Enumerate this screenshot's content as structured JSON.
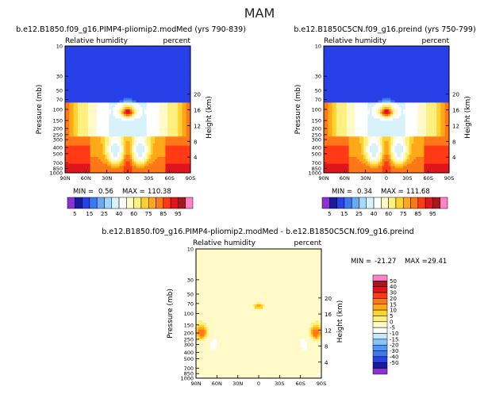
{
  "page_title": "MAM",
  "palette": {
    "full": [
      "#8c2fd6",
      "#1a1aa0",
      "#2840e8",
      "#3c78f0",
      "#6aaaf0",
      "#a4d8f8",
      "#d8f2fc",
      "#ffffff",
      "#fffac8",
      "#fff080",
      "#ffd230",
      "#ffa818",
      "#ff7818",
      "#ff3a14",
      "#e0141c",
      "#aa1420",
      "#ff82c8"
    ],
    "diff": [
      "#8c2fd6",
      "#1a1aa0",
      "#2840e8",
      "#3c78f0",
      "#4c98f4",
      "#88c4f8",
      "#c4e8fc",
      "#ffffff",
      "#fffac8",
      "#fff080",
      "#ffd230",
      "#ffa818",
      "#ff7818",
      "#ff3a14",
      "#e0141c",
      "#aa1420",
      "#ff82c8"
    ]
  },
  "panels": [
    {
      "id": "top-left",
      "title": "b.e12.B1850.f09_g16.PIMP4-pliomip2.modMed (yrs 790-839)",
      "left_string": "Relative humidity",
      "right_string": "percent",
      "stats": {
        "min_label": "MIN =",
        "min": "0.56",
        "max_label": "MAX =",
        "max": "110.38"
      }
    },
    {
      "id": "top-right",
      "title": "b.e12.B1850C5CN.f09_g16.preind (yrs 750-799)",
      "left_string": "Relative humidity",
      "right_string": "percent",
      "stats": {
        "min_label": "MIN =",
        "min": "0.34",
        "max_label": "MAX =",
        "max": "111.68"
      }
    },
    {
      "id": "bottom",
      "title": "b.e12.B1850.f09_g16.PIMP4-pliomip2.modMed - b.e12.B1850C5CN.f09_g16.preind",
      "left_string": "Relative humidity",
      "right_string": "percent",
      "stats": {
        "min_label": "MIN =",
        "min": "-21.27",
        "max_label": "MAX =",
        "max": "29.41"
      }
    }
  ],
  "chart_data": [
    {
      "type": "heatmap",
      "title": "b.e12.B1850.f09_g16.PIMP4-pliomip2.modMed (yrs 790-839)",
      "subtitle_left": "Relative humidity",
      "subtitle_right": "percent",
      "x_ticks": [
        "90N",
        "60N",
        "30N",
        "0",
        "30S",
        "60S",
        "90S"
      ],
      "y_ticks": [
        "10",
        "30",
        "50",
        "70",
        "100",
        "150",
        "200",
        "250",
        "300",
        "400",
        "500",
        "700",
        "850",
        "1000"
      ],
      "y2_ticks": [
        "20",
        "16",
        "12",
        "8",
        "4"
      ],
      "xlabel": "",
      "ylabel": "Pressure (mb)",
      "y2label": "Height (km)",
      "xlim": [
        90,
        -90
      ],
      "ylim": [
        1000,
        10
      ],
      "y_scale": "log",
      "colorbar_levels": [
        "5",
        "15",
        "25",
        "40",
        "60",
        "75",
        "85",
        "95"
      ],
      "min": 0.56,
      "max": 110.38
    },
    {
      "type": "heatmap",
      "title": "b.e12.B1850C5CN.f09_g16.preind (yrs 750-799)",
      "subtitle_left": "Relative humidity",
      "subtitle_right": "percent",
      "x_ticks": [
        "90N",
        "60N",
        "30N",
        "0",
        "30S",
        "60S",
        "90S"
      ],
      "y_ticks": [
        "10",
        "30",
        "50",
        "70",
        "100",
        "150",
        "200",
        "250",
        "300",
        "400",
        "500",
        "700",
        "850",
        "1000"
      ],
      "y2_ticks": [
        "20",
        "16",
        "12",
        "8",
        "4"
      ],
      "xlabel": "",
      "ylabel": "Pressure (mb)",
      "y2label": "Height (km)",
      "xlim": [
        90,
        -90
      ],
      "ylim": [
        1000,
        10
      ],
      "y_scale": "log",
      "colorbar_levels": [
        "5",
        "15",
        "25",
        "40",
        "60",
        "75",
        "85",
        "95"
      ],
      "min": 0.34,
      "max": 111.68
    },
    {
      "type": "heatmap",
      "title": "b.e12.B1850.f09_g16.PIMP4-pliomip2.modMed - b.e12.B1850C5CN.f09_g16.preind",
      "subtitle_left": "Relative humidity",
      "subtitle_right": "percent",
      "x_ticks": [
        "90N",
        "60N",
        "30N",
        "0",
        "30S",
        "60S",
        "90S"
      ],
      "y_ticks": [
        "10",
        "30",
        "50",
        "70",
        "100",
        "150",
        "200",
        "250",
        "300",
        "400",
        "500",
        "700",
        "850",
        "1000"
      ],
      "y2_ticks": [
        "20",
        "16",
        "12",
        "8",
        "4"
      ],
      "xlabel": "",
      "ylabel": "Pressure (mb)",
      "y2label": "Height (km)",
      "xlim": [
        90,
        -90
      ],
      "ylim": [
        1000,
        10
      ],
      "y_scale": "log",
      "colorbar_levels": [
        "50",
        "40",
        "30",
        "20",
        "15",
        "10",
        "5",
        "0",
        "-5",
        "-10",
        "-15",
        "-20",
        "-30",
        "-40",
        "-50"
      ],
      "min": -21.27,
      "max": 29.41
    }
  ]
}
